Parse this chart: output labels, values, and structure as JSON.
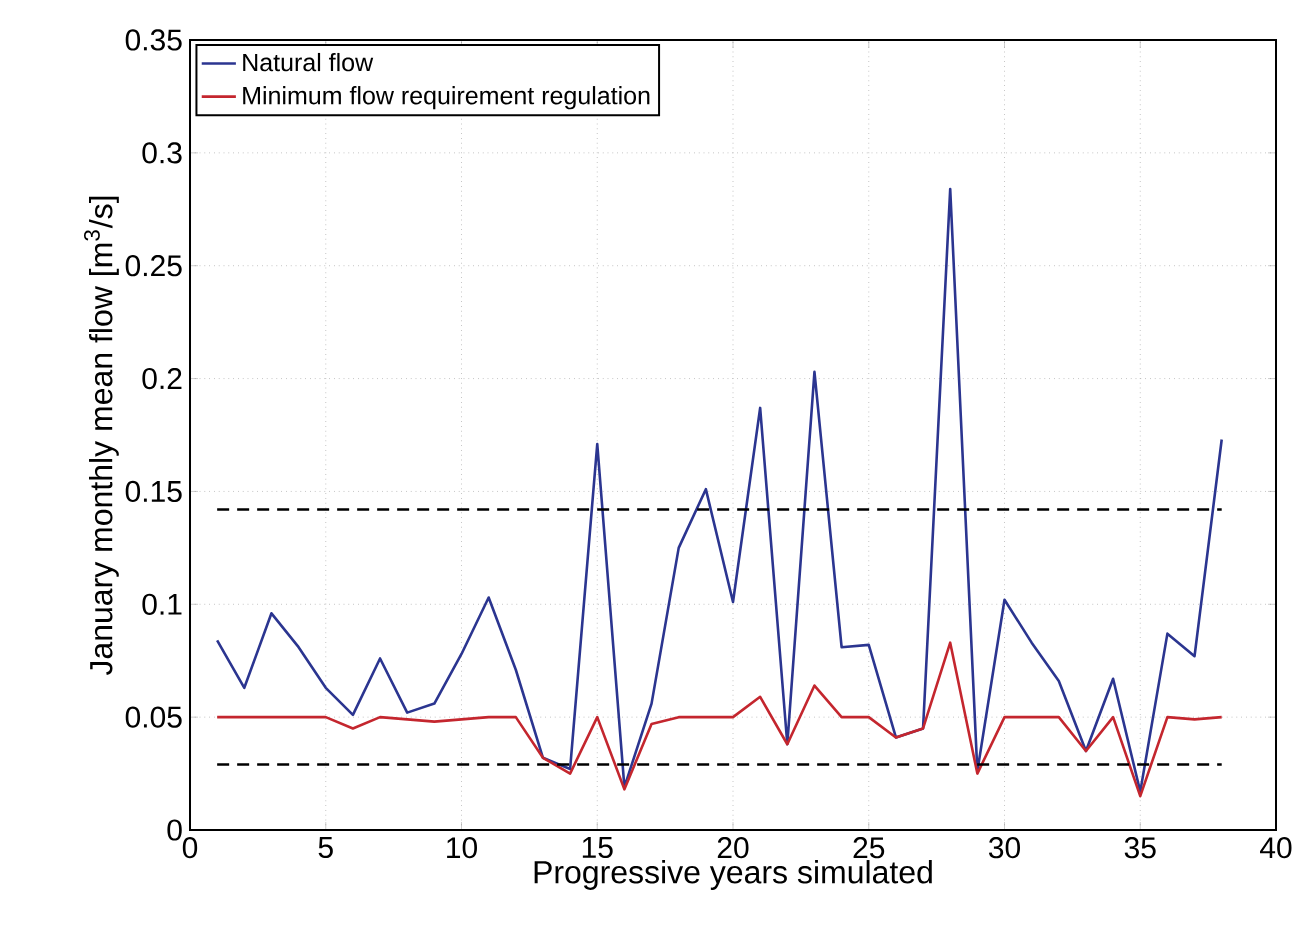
{
  "chart_data": {
    "type": "line",
    "xlabel": "Progressive years simulated",
    "ylabel": "January monthly mean flow [m$^{3}$/s]",
    "x": [
      1,
      2,
      3,
      4,
      5,
      6,
      7,
      8,
      9,
      10,
      11,
      12,
      13,
      14,
      15,
      16,
      17,
      18,
      19,
      20,
      21,
      22,
      23,
      24,
      25,
      26,
      27,
      28,
      29,
      30,
      31,
      32,
      33,
      34,
      35,
      36,
      37,
      38
    ],
    "series": [
      {
        "name": "Natural flow",
        "color": "#2b3590",
        "values": [
          0.084,
          0.063,
          0.096,
          0.081,
          0.063,
          0.051,
          0.076,
          0.052,
          0.056,
          0.078,
          0.103,
          0.071,
          0.032,
          0.027,
          0.171,
          0.019,
          0.056,
          0.125,
          0.151,
          0.101,
          0.187,
          0.038,
          0.203,
          0.081,
          0.082,
          0.041,
          0.045,
          0.284,
          0.026,
          0.102,
          0.083,
          0.066,
          0.035,
          0.067,
          0.017,
          0.087,
          0.077,
          0.173
        ]
      },
      {
        "name": "Minimum flow requirement regulation",
        "color": "#c4262e",
        "values": [
          0.05,
          0.05,
          0.05,
          0.05,
          0.05,
          0.045,
          0.05,
          0.049,
          0.048,
          0.049,
          0.05,
          0.05,
          0.032,
          0.025,
          0.05,
          0.018,
          0.047,
          0.05,
          0.05,
          0.05,
          0.059,
          0.038,
          0.064,
          0.05,
          0.05,
          0.041,
          0.045,
          0.083,
          0.025,
          0.05,
          0.05,
          0.05,
          0.035,
          0.05,
          0.015,
          0.05,
          0.049,
          0.05
        ]
      }
    ],
    "xlim": [
      0,
      40
    ],
    "xticks": [
      0,
      5,
      10,
      15,
      20,
      25,
      30,
      35,
      40
    ],
    "ylim": [
      0,
      0.35
    ],
    "yticks": [
      0,
      0.05,
      0.1,
      0.15,
      0.2,
      0.25,
      0.3,
      0.35
    ],
    "ref_lines": [
      {
        "axis": "y",
        "value": 0.142,
        "color": "#000000",
        "line_style": "dashed"
      },
      {
        "axis": "y",
        "value": 0.029,
        "color": "#000000",
        "line_style": "dashed"
      }
    ],
    "grid": true,
    "legend": "top left",
    "marker": "none",
    "line_style": "solid"
  }
}
